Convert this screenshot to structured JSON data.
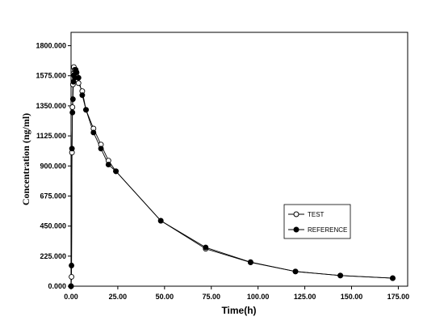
{
  "chart_data": {
    "type": "line",
    "xlabel": "Time(h)",
    "ylabel": "Concentration  (ng/ml)",
    "xlim": [
      0,
      180
    ],
    "ylim": [
      0,
      1900
    ],
    "x_ticks": [
      "0.00",
      "25.00",
      "50.00",
      "75.00",
      "100.00",
      "125.00",
      "150.00",
      "175.00"
    ],
    "y_ticks": [
      "0.000",
      "225.000",
      "450.000",
      "675.000",
      "900.000",
      "1125.000",
      "1350.000",
      "1575.000",
      "1800.000"
    ],
    "grid": false,
    "legend_position": "right-middle",
    "series": [
      {
        "name": "TEST",
        "marker": "open-circle",
        "color": "#000000",
        "x": [
          0,
          0.25,
          0.5,
          0.75,
          1,
          1.25,
          1.5,
          2,
          2.5,
          3,
          4,
          6,
          8,
          12,
          16,
          20,
          24,
          48,
          72,
          96,
          120,
          144,
          172
        ],
        "y": [
          0,
          70,
          1000,
          1340,
          1510,
          1590,
          1640,
          1620,
          1610,
          1570,
          1520,
          1460,
          1320,
          1180,
          1060,
          940,
          860,
          490,
          280,
          178,
          110,
          80,
          60
        ]
      },
      {
        "name": "REFERENCE",
        "marker": "filled-circle",
        "color": "#000000",
        "x": [
          0,
          0.25,
          0.5,
          0.75,
          1,
          1.25,
          1.5,
          2,
          2.5,
          3,
          4,
          6,
          8,
          12,
          16,
          20,
          24,
          48,
          72,
          96,
          120,
          144,
          172
        ],
        "y": [
          0,
          155,
          1030,
          1300,
          1400,
          1530,
          1580,
          1560,
          1620,
          1600,
          1560,
          1430,
          1320,
          1150,
          1030,
          910,
          860,
          490,
          290,
          180,
          110,
          80,
          60
        ]
      }
    ]
  }
}
